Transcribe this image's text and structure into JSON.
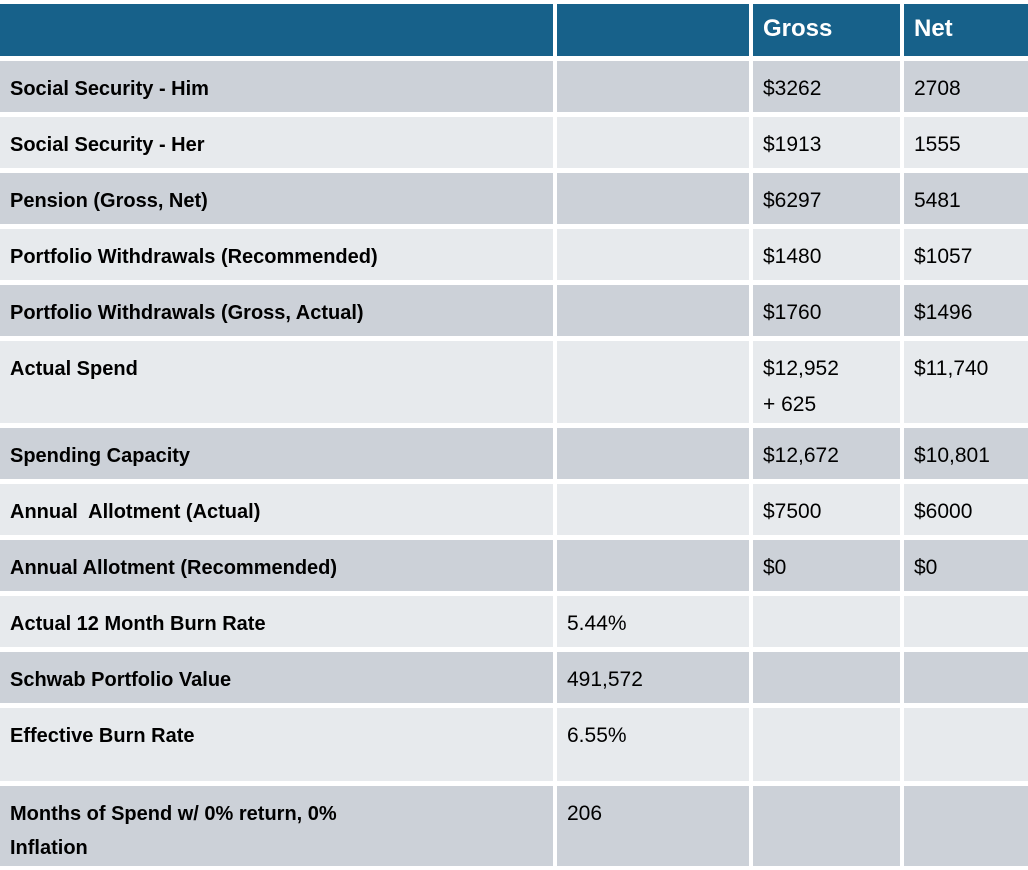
{
  "table": {
    "title": "retirement-income-spending-summary",
    "colors": {
      "header_bg": "#17618A",
      "header_text": "#FFFFFF",
      "row_dark": "#CCD1D8",
      "row_light": "#E7EAED",
      "body_text": "#000000",
      "grid_gap": "#FFFFFF"
    },
    "header": {
      "label_col": "",
      "mid_col": "",
      "gross": "Gross",
      "net": "Net"
    },
    "rows": [
      {
        "label": "Social Security - Him",
        "value": "",
        "gross": "$3262",
        "net": "2708"
      },
      {
        "label": "Social Security - Her",
        "value": "",
        "gross": "$1913",
        "net": "1555"
      },
      {
        "label": "Pension (Gross, Net)",
        "value": "",
        "gross": "$6297",
        "net": "5481"
      },
      {
        "label": "Portfolio Withdrawals (Recommended)",
        "value": "",
        "gross": "$1480",
        "net": "$1057"
      },
      {
        "label": "Portfolio Withdrawals (Gross, Actual)",
        "value": "",
        "gross": "$1760",
        "net": "$1496"
      },
      {
        "label": "Actual Spend",
        "value": "",
        "gross": "$12,952\n+ 625",
        "net": "$11,740"
      },
      {
        "label": "Spending Capacity",
        "value": "",
        "gross": "$12,672",
        "net": "$10,801"
      },
      {
        "label": "Annual  Allotment (Actual)",
        "value": "",
        "gross": "$7500",
        "net": "$6000"
      },
      {
        "label": "Annual Allotment (Recommended)",
        "value": "",
        "gross": "$0",
        "net": "$0"
      },
      {
        "label": "Actual 12 Month Burn Rate",
        "value": "5.44%",
        "gross": "",
        "net": ""
      },
      {
        "label": "Schwab Portfolio Value",
        "value": "491,572",
        "gross": "",
        "net": ""
      },
      {
        "label": "Effective Burn Rate",
        "value": "6.55%",
        "gross": "",
        "net": ""
      },
      {
        "label": "Months of Spend w/ 0% return, 0%\nInflation",
        "value": "206",
        "gross": "",
        "net": ""
      }
    ]
  }
}
